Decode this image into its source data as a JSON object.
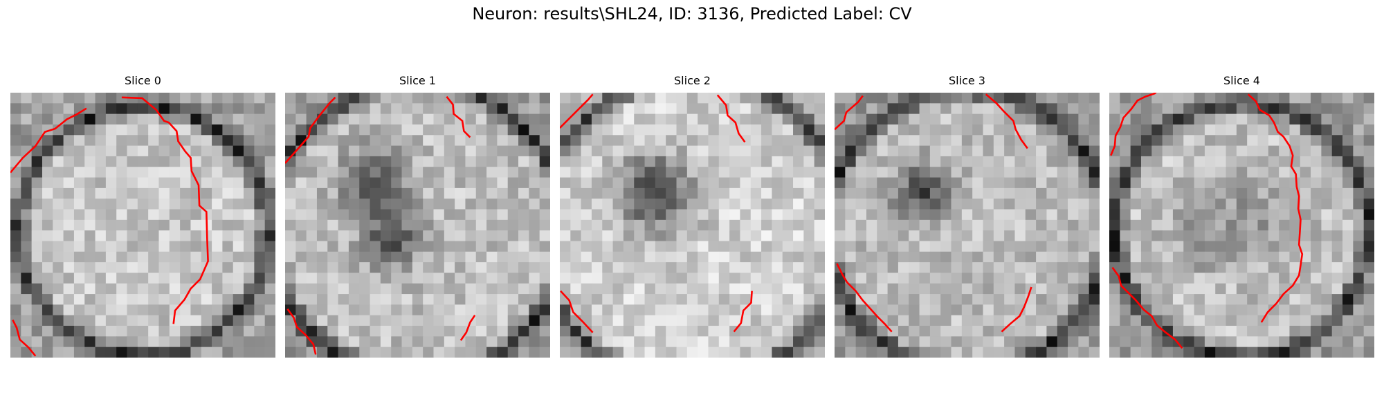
{
  "figure": {
    "title": "Neuron: results\\SHL24, ID: 3136, Predicted Label: CV"
  },
  "colors": {
    "contour": "#ff0000",
    "background": "#ffffff"
  },
  "slices": [
    {
      "title": "Slice 0",
      "mean_brightness": 0.66
    },
    {
      "title": "Slice 1",
      "mean_brightness": 0.63
    },
    {
      "title": "Slice 2",
      "mean_brightness": 0.7
    },
    {
      "title": "Slice 3",
      "mean_brightness": 0.62
    },
    {
      "title": "Slice 4",
      "mean_brightness": 0.64
    }
  ]
}
